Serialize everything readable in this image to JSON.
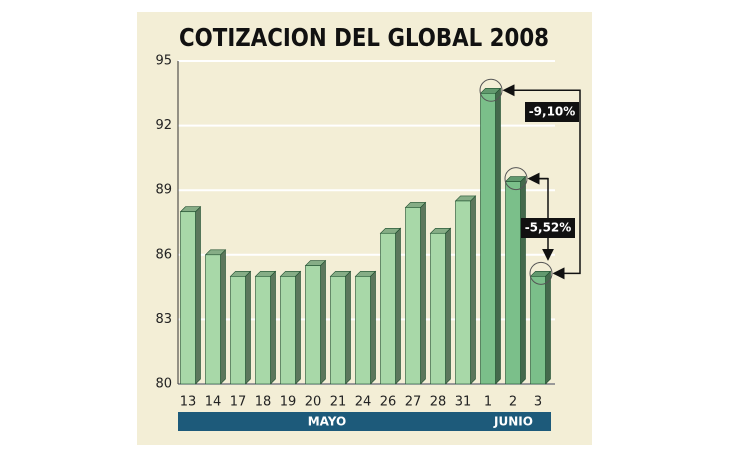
{
  "chart_data": {
    "type": "bar3d",
    "title": "COTIZACION DEL GLOBAL 2008",
    "categories": [
      "13",
      "14",
      "17",
      "18",
      "19",
      "20",
      "21",
      "24",
      "26",
      "27",
      "28",
      "31",
      "1",
      "2",
      "3"
    ],
    "values": [
      88,
      86,
      85,
      85,
      85,
      85.5,
      85,
      85,
      87,
      88.2,
      87,
      88.5,
      93.5,
      89.4,
      85
    ],
    "groups": [
      {
        "label": "MAYO",
        "count": 12,
        "color": "#a8d8a8"
      },
      {
        "label": "JUNIO",
        "count": 3,
        "color": "#7bbf8a"
      }
    ],
    "ylim": [
      80,
      95
    ],
    "yticks": [
      80,
      83,
      86,
      89,
      92,
      95
    ],
    "grid": true,
    "annotations": [
      {
        "text": "-9,10%"
      },
      {
        "text": "-5,52%"
      }
    ]
  }
}
